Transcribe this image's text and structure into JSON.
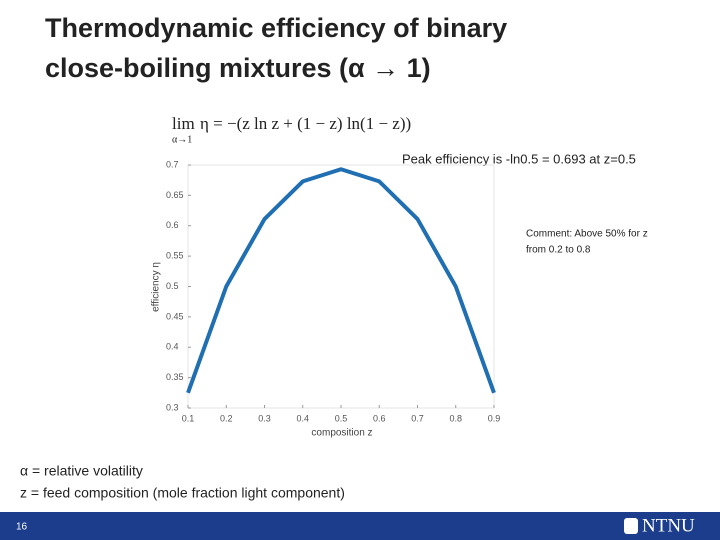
{
  "title": [
    "Thermodynamic efficiency of binary",
    "close-boiling mixtures (α → 1)"
  ],
  "formula": {
    "lim": "lim",
    "sub": "α→1",
    "expr": "η = −(z ln z + (1 − z) ln(1 − z))"
  },
  "notes": [
    "α = relative volatility",
    "z = feed composition (mole fraction light component)"
  ],
  "footer": {
    "page": "16",
    "logo": "NTNU"
  },
  "chart_data": {
    "type": "line",
    "x": [
      0.1,
      0.2,
      0.3,
      0.4,
      0.5,
      0.6,
      0.7,
      0.8,
      0.9
    ],
    "values": [
      0.325,
      0.5,
      0.611,
      0.673,
      0.693,
      0.673,
      0.611,
      0.5,
      0.325
    ],
    "color": "#1f6fb2",
    "xlim": [
      0.1,
      0.9
    ],
    "ylim": [
      0.3,
      0.7
    ],
    "xticks": [
      0.1,
      0.2,
      0.3,
      0.4,
      0.5,
      0.6,
      0.7,
      0.8,
      0.9
    ],
    "yticks": [
      0.3,
      0.35,
      0.4,
      0.45,
      0.5,
      0.55,
      0.6,
      0.65,
      0.7
    ],
    "xlabel": "composition z",
    "ylabel": "efficiency η",
    "annotations": [
      "Peak efficiency is -ln0.5 = 0.693 at z=0.5",
      "Comment: Above 50% for z",
      "from 0.2 to 0.8"
    ]
  }
}
